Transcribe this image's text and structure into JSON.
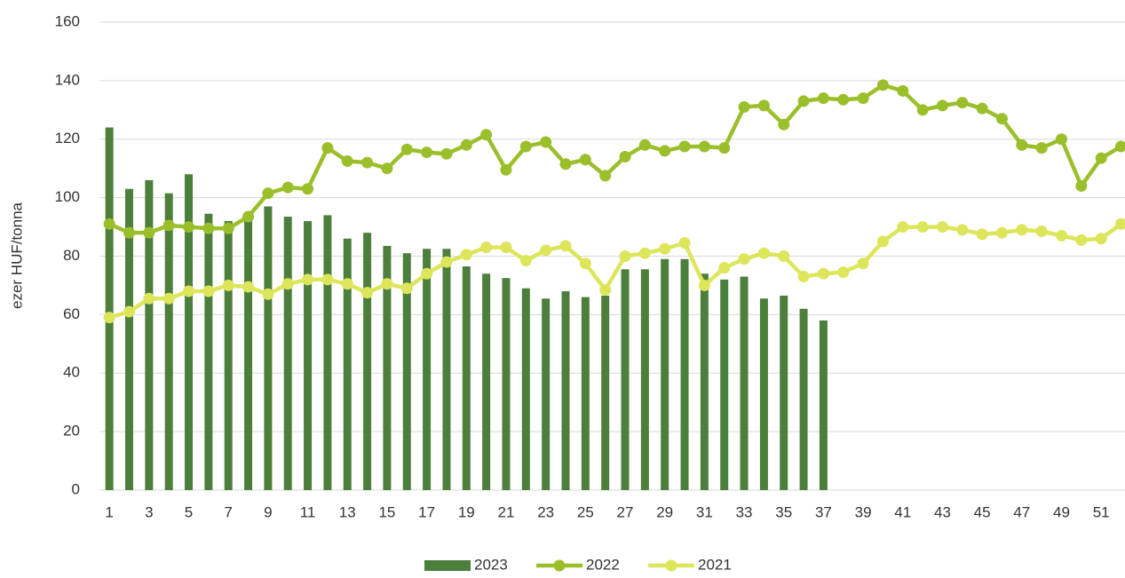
{
  "chart_data": {
    "type": "bar_line",
    "y_label": "ezer HUF/tonna",
    "categories": [
      "1",
      null,
      "3",
      null,
      "5",
      null,
      "7",
      null,
      "9",
      null,
      "11",
      null,
      "13",
      null,
      "15",
      null,
      "17",
      null,
      "19",
      null,
      "21",
      null,
      "23",
      null,
      "25",
      null,
      "27",
      null,
      "29",
      null,
      "31",
      null,
      "33",
      null,
      "35",
      null,
      "37",
      null,
      "39",
      null,
      "41",
      null,
      "43",
      null,
      "45",
      null,
      "47",
      null,
      "49",
      null,
      "51",
      null
    ],
    "series": [
      {
        "name": "2023",
        "kind": "bar",
        "color": "#4b7f3b",
        "values": [
          124,
          103,
          106,
          101.5,
          108,
          94.5,
          92,
          92,
          97,
          93.5,
          92,
          94,
          86,
          88,
          83.5,
          81,
          82.5,
          82.5,
          76.5,
          74,
          72.5,
          69,
          65.5,
          68,
          66,
          66.5,
          75.5,
          75.5,
          79,
          79,
          74,
          72,
          73,
          65.5,
          66.5,
          62,
          58,
          null,
          null,
          null,
          null,
          null,
          null,
          null,
          null,
          null,
          null,
          null,
          null,
          null,
          null,
          null
        ]
      },
      {
        "name": "2022",
        "kind": "line",
        "color": "#9bbf2b",
        "values": [
          91,
          88,
          88,
          90.5,
          90,
          89.5,
          89.5,
          93.5,
          101.5,
          103.5,
          103,
          117,
          112.5,
          112,
          110,
          116.5,
          115.5,
          115,
          118,
          121.5,
          109.5,
          117.5,
          119,
          111.5,
          113,
          107.5,
          114,
          118,
          116,
          117.5,
          117.5,
          117,
          131,
          131.5,
          125,
          133,
          134,
          133.5,
          134,
          138.5,
          136.5,
          130,
          131.5,
          132.5,
          130.5,
          127,
          118,
          117,
          120,
          104,
          113.5,
          117.5
        ]
      },
      {
        "name": "2021",
        "kind": "line",
        "color": "#dde55a",
        "values": [
          59,
          61,
          65.5,
          65.5,
          68,
          68,
          70,
          69.5,
          67,
          70.5,
          72,
          72,
          70.5,
          67.5,
          70.5,
          69,
          74,
          78,
          80.5,
          83,
          83,
          78.5,
          82,
          83.5,
          77.5,
          68.5,
          80,
          81,
          82.5,
          84.5,
          70,
          76,
          79,
          81,
          80,
          73,
          74,
          74.5,
          77.5,
          85,
          90,
          90,
          90,
          89,
          87.5,
          88,
          89,
          88.5,
          87,
          85.5,
          86,
          91
        ]
      }
    ],
    "ylim": [
      0,
      160
    ],
    "yticks": [
      0,
      20,
      40,
      60,
      80,
      100,
      120,
      140,
      160
    ],
    "grid": true,
    "legend": "bottom"
  }
}
